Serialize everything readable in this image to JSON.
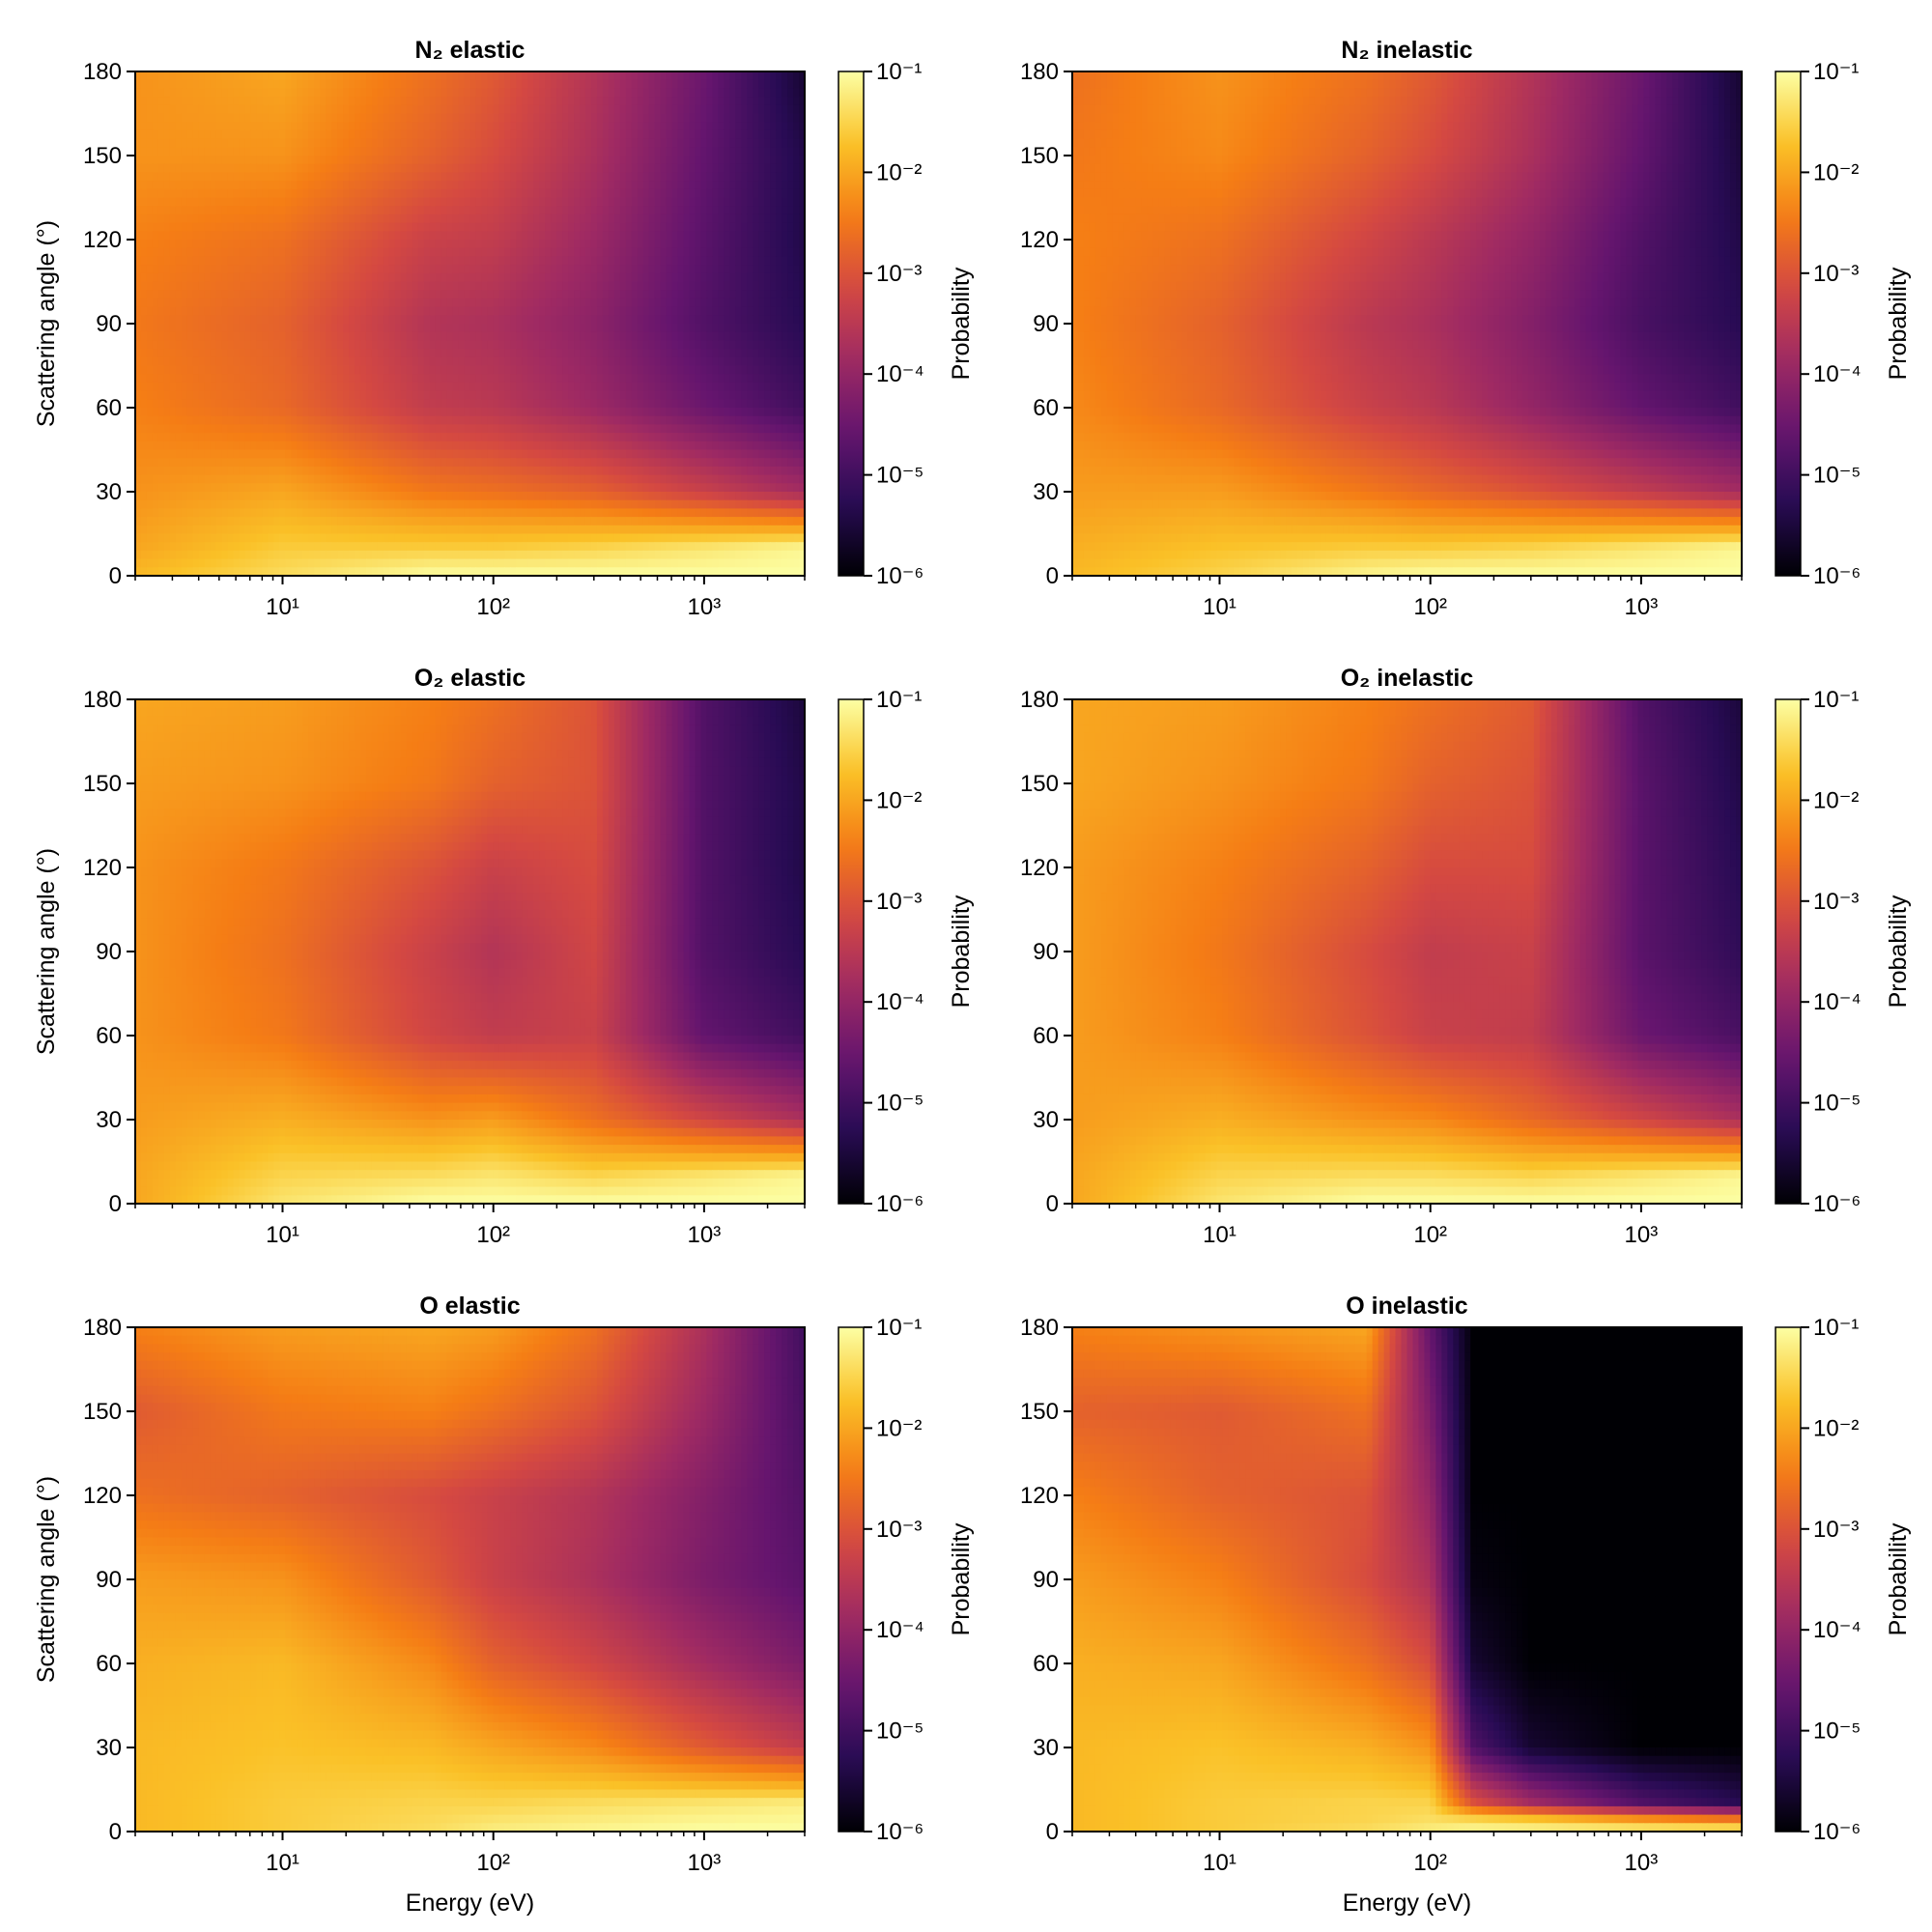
{
  "chart_data": {
    "type": "heatmap",
    "layout": "3 rows x 2 columns",
    "xlabel": "Energy (eV)",
    "ylabel": "Scattering angle (°)",
    "x_scale": "log",
    "xlim": [
      2,
      3000
    ],
    "x_ticks": [
      10,
      100,
      1000
    ],
    "x_tick_labels": [
      "10¹",
      "10²",
      "10³"
    ],
    "ylim": [
      0,
      180
    ],
    "y_ticks": [
      0,
      30,
      60,
      90,
      120,
      150,
      180
    ],
    "y_tick_labels": [
      "0",
      "30",
      "60",
      "90",
      "120",
      "150",
      "180"
    ],
    "colorbar": {
      "label": "Probability",
      "scale": "log",
      "colormap": "inferno",
      "range": [
        1e-06,
        0.1
      ],
      "ticks": [
        1e-06,
        1e-05,
        0.0001,
        0.001,
        0.01,
        0.1
      ],
      "tick_labels": [
        "10⁻⁶",
        "10⁻⁵",
        "10⁻⁴",
        "10⁻³",
        "10⁻²",
        "10⁻¹"
      ]
    },
    "panels": [
      {
        "title": "N₂ elastic",
        "show_xlabel": false,
        "show_ylabel": true,
        "grid_log10_probability": {
          "energies_eV": [
            2,
            10,
            50,
            100,
            300,
            1000,
            3000
          ],
          "angles_deg": [
            0,
            10,
            30,
            60,
            90,
            120,
            150,
            180
          ],
          "log10_p": [
            [
              -1.8,
              -1.4,
              -1.0,
              -1.0,
              -1.0,
              -1.0,
              -1.0
            ],
            [
              -2.0,
              -1.6,
              -1.6,
              -1.6,
              -1.5,
              -1.3,
              -1.1
            ],
            [
              -2.2,
              -2.0,
              -2.5,
              -2.6,
              -2.8,
              -3.3,
              -3.8
            ],
            [
              -2.4,
              -2.7,
              -3.4,
              -3.5,
              -3.9,
              -4.5,
              -5.0
            ],
            [
              -2.5,
              -2.8,
              -3.6,
              -3.7,
              -4.1,
              -4.8,
              -5.3
            ],
            [
              -2.4,
              -2.6,
              -3.3,
              -3.4,
              -3.9,
              -4.7,
              -5.4
            ],
            [
              -2.2,
              -2.2,
              -2.8,
              -3.1,
              -3.7,
              -4.6,
              -5.4
            ],
            [
              -2.2,
              -2.0,
              -2.6,
              -2.9,
              -3.6,
              -4.5,
              -5.6
            ]
          ]
        }
      },
      {
        "title": "N₂ inelastic",
        "show_xlabel": false,
        "show_ylabel": false,
        "grid_log10_probability": {
          "energies_eV": [
            2,
            10,
            50,
            100,
            300,
            1000,
            3000
          ],
          "angles_deg": [
            0,
            10,
            30,
            60,
            90,
            120,
            150,
            180
          ],
          "log10_p": [
            [
              -1.8,
              -1.5,
              -1.1,
              -1.0,
              -1.0,
              -1.0,
              -1.0
            ],
            [
              -1.9,
              -1.7,
              -1.6,
              -1.6,
              -1.5,
              -1.3,
              -1.1
            ],
            [
              -2.1,
              -2.1,
              -2.5,
              -2.7,
              -3.0,
              -3.4,
              -3.8
            ],
            [
              -2.3,
              -2.7,
              -3.3,
              -3.5,
              -4.0,
              -4.6,
              -5.0
            ],
            [
              -2.4,
              -2.8,
              -3.5,
              -3.7,
              -4.2,
              -4.9,
              -5.3
            ],
            [
              -2.4,
              -2.6,
              -3.2,
              -3.5,
              -4.0,
              -4.8,
              -5.4
            ],
            [
              -2.5,
              -2.3,
              -2.8,
              -3.1,
              -3.7,
              -4.6,
              -5.5
            ],
            [
              -2.6,
              -2.2,
              -2.6,
              -2.9,
              -3.6,
              -4.5,
              -5.6
            ]
          ]
        }
      },
      {
        "title": "O₂ elastic",
        "show_xlabel": false,
        "show_ylabel": true,
        "grid_log10_probability": {
          "energies_eV": [
            2,
            10,
            50,
            100,
            300,
            1000,
            3000
          ],
          "angles_deg": [
            0,
            10,
            30,
            60,
            90,
            120,
            150,
            180
          ],
          "log10_p": [
            [
              -2.0,
              -1.3,
              -1.0,
              -1.0,
              -1.0,
              -1.0,
              -1.0
            ],
            [
              -2.0,
              -1.5,
              -1.4,
              -1.3,
              -1.5,
              -1.3,
              -1.1
            ],
            [
              -2.1,
              -1.9,
              -2.2,
              -2.1,
              -2.6,
              -3.2,
              -3.7
            ],
            [
              -2.2,
              -2.5,
              -3.2,
              -3.4,
              -3.3,
              -4.6,
              -5.0
            ],
            [
              -2.2,
              -2.6,
              -3.3,
              -3.6,
              -3.2,
              -4.8,
              -5.3
            ],
            [
              -2.2,
              -2.5,
              -3.0,
              -3.3,
              -3.1,
              -4.8,
              -5.4
            ],
            [
              -2.1,
              -2.2,
              -2.5,
              -2.8,
              -3.0,
              -4.8,
              -5.4
            ],
            [
              -2.0,
              -2.1,
              -2.4,
              -2.6,
              -3.0,
              -4.8,
              -5.5
            ]
          ]
        }
      },
      {
        "title": "O₂ inelastic",
        "show_xlabel": false,
        "show_ylabel": false,
        "grid_log10_probability": {
          "energies_eV": [
            2,
            10,
            50,
            100,
            300,
            1000,
            3000
          ],
          "angles_deg": [
            0,
            10,
            30,
            60,
            90,
            120,
            150,
            180
          ],
          "log10_p": [
            [
              -2.0,
              -1.3,
              -1.0,
              -1.0,
              -1.0,
              -1.0,
              -1.0
            ],
            [
              -2.0,
              -1.5,
              -1.4,
              -1.4,
              -1.5,
              -1.3,
              -1.1
            ],
            [
              -2.1,
              -1.9,
              -2.2,
              -2.3,
              -2.7,
              -3.2,
              -3.7
            ],
            [
              -2.1,
              -2.4,
              -3.0,
              -3.3,
              -3.4,
              -4.5,
              -4.9
            ],
            [
              -2.1,
              -2.5,
              -3.1,
              -3.4,
              -3.3,
              -4.7,
              -5.2
            ],
            [
              -2.1,
              -2.4,
              -2.8,
              -3.1,
              -3.1,
              -4.7,
              -5.3
            ],
            [
              -2.0,
              -2.2,
              -2.5,
              -2.8,
              -3.0,
              -4.7,
              -5.4
            ],
            [
              -2.0,
              -2.1,
              -2.4,
              -2.6,
              -2.9,
              -4.8,
              -5.5
            ]
          ]
        }
      },
      {
        "title": "O elastic",
        "show_xlabel": true,
        "show_ylabel": true,
        "grid_log10_probability": {
          "energies_eV": [
            2,
            10,
            50,
            100,
            300,
            1000,
            3000
          ],
          "angles_deg": [
            0,
            10,
            30,
            60,
            90,
            120,
            150,
            180
          ],
          "log10_p": [
            [
              -1.8,
              -1.6,
              -1.4,
              -1.2,
              -1.1,
              -1.0,
              -1.0
            ],
            [
              -1.8,
              -1.6,
              -1.5,
              -1.5,
              -1.4,
              -1.3,
              -1.2
            ],
            [
              -1.8,
              -1.7,
              -1.8,
              -2.0,
              -2.3,
              -2.9,
              -3.4
            ],
            [
              -1.9,
              -1.8,
              -2.3,
              -2.8,
              -3.2,
              -3.8,
              -4.3
            ],
            [
              -2.1,
              -2.2,
              -2.9,
              -3.3,
              -3.7,
              -4.3,
              -4.7
            ],
            [
              -2.6,
              -2.8,
              -3.1,
              -3.3,
              -3.6,
              -4.2,
              -4.8
            ],
            [
              -2.9,
              -2.5,
              -2.4,
              -2.6,
              -3.0,
              -3.9,
              -4.9
            ],
            [
              -2.4,
              -2.1,
              -2.0,
              -2.1,
              -2.6,
              -3.7,
              -5.0
            ]
          ]
        }
      },
      {
        "title": "O inelastic",
        "show_xlabel": true,
        "show_ylabel": false,
        "grid_log10_probability": {
          "energies_eV": [
            2,
            10,
            50,
            100,
            160,
            300,
            1000,
            3000
          ],
          "angles_deg": [
            0,
            5,
            10,
            30,
            60,
            90,
            120,
            150,
            180
          ],
          "log10_p": [
            [
              -1.8,
              -1.6,
              -1.4,
              -1.2,
              -1.0,
              -1.0,
              -1.0,
              -1.0
            ],
            [
              -1.8,
              -1.6,
              -1.5,
              -1.4,
              -1.6,
              -1.8,
              -2.4,
              -2.8
            ],
            [
              -1.8,
              -1.6,
              -1.5,
              -1.5,
              -3.0,
              -3.8,
              -4.8,
              -5.3
            ],
            [
              -1.8,
              -1.7,
              -1.9,
              -2.2,
              -4.8,
              -5.6,
              -6.0,
              -6.0
            ],
            [
              -1.9,
              -2.0,
              -2.6,
              -3.1,
              -5.6,
              -6.0,
              -6.0,
              -6.0
            ],
            [
              -2.1,
              -2.4,
              -3.1,
              -3.7,
              -5.9,
              -6.0,
              -6.0,
              -6.0
            ],
            [
              -2.4,
              -2.8,
              -3.0,
              -4.0,
              -6.0,
              -6.0,
              -6.0,
              -6.0
            ],
            [
              -2.8,
              -2.9,
              -2.6,
              -4.3,
              -6.0,
              -6.0,
              -6.0,
              -6.0
            ],
            [
              -2.4,
              -2.2,
              -2.0,
              -4.6,
              -6.0,
              -6.0,
              -6.0,
              -6.0
            ]
          ]
        }
      }
    ]
  }
}
